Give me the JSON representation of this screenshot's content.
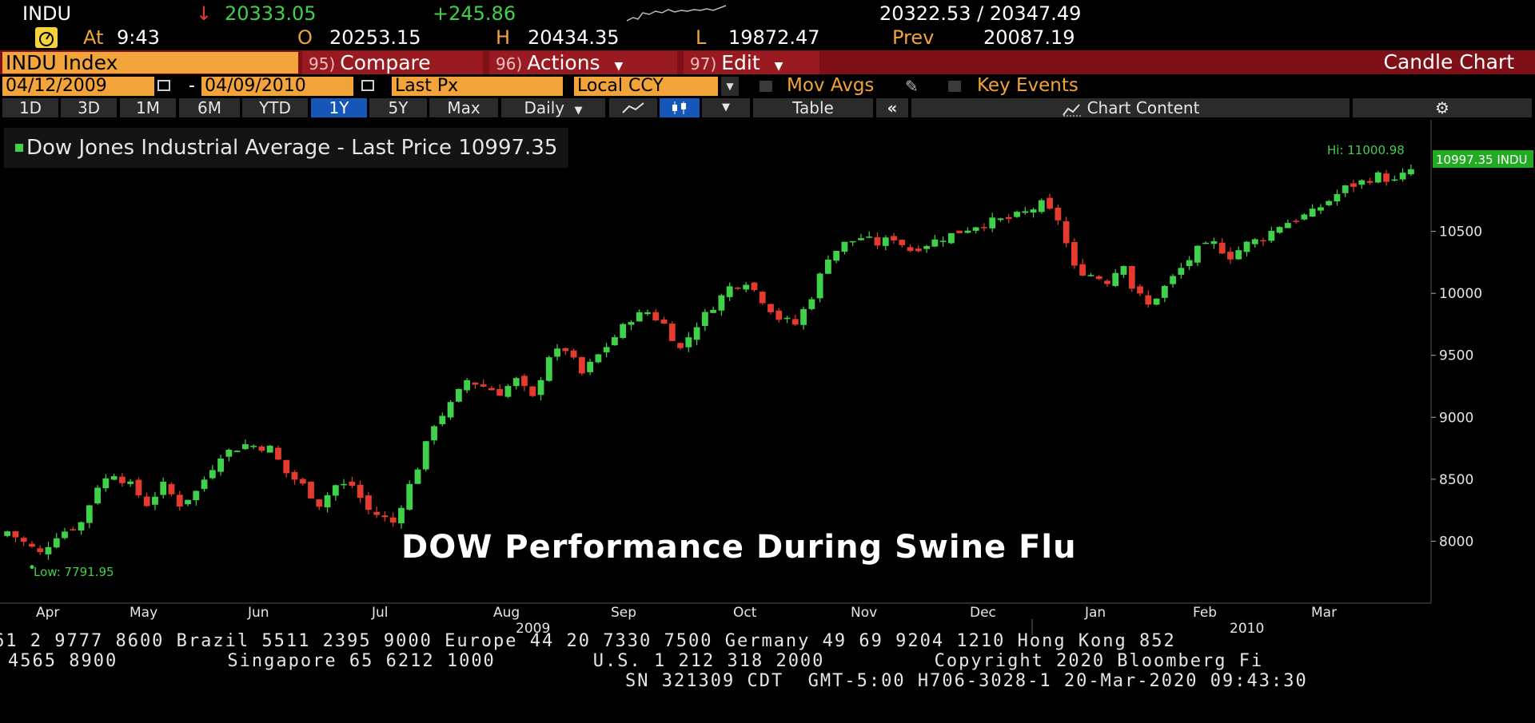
{
  "quote": {
    "ticker": "INDU",
    "arrow": "↓",
    "last": "20333.05",
    "change": "+245.86",
    "bid_ask": "20322.53 / 20347.49",
    "at_label": "At",
    "time": "9:43",
    "open_label": "O",
    "open": "20253.15",
    "high_label": "H",
    "high": "20434.35",
    "low_label": "L",
    "low": "19872.47",
    "prev_label": "Prev",
    "prev": "20087.19"
  },
  "function_bar": {
    "ticker": "INDU Index",
    "compare_num": "95)",
    "compare": "Compare",
    "actions_num": "96)",
    "actions": "Actions",
    "edit_num": "97)",
    "edit": "Edit",
    "title": "Candle Chart"
  },
  "controls": {
    "start_date": "04/12/2009",
    "dash": "-",
    "end_date": "04/09/2010",
    "field": "Last Px",
    "currency": "Local CCY",
    "mov_avgs": "Mov Avgs",
    "key_events": "Key Events"
  },
  "tabs": {
    "periods": [
      "1D",
      "3D",
      "1M",
      "6M",
      "YTD",
      "1Y",
      "5Y",
      "Max"
    ],
    "active": "1Y",
    "frequency": "Daily",
    "table": "Table",
    "chart_content": "Chart Content"
  },
  "legend": {
    "text": "Dow Jones Industrial Average - Last Price 10997.35"
  },
  "overlay_title": "DOW Performance During Swine Flu",
  "chart_data": {
    "type": "candlestick",
    "hi_label": "Hi: 11000.98",
    "low_label": "Low: 7791.95",
    "last_label": "10997.35 INDU",
    "y_ticks": [
      8000,
      8500,
      9000,
      9500,
      10000,
      10500
    ],
    "y_tick_labels": [
      "8000",
      "8500",
      "9000",
      "9500",
      "10000",
      "10500"
    ],
    "ylim": [
      7500,
      11400
    ],
    "x_months": [
      "Apr",
      "May",
      "Jun",
      "Jul",
      "Aug",
      "Sep",
      "Oct",
      "Nov",
      "Dec",
      "Jan",
      "Feb",
      "Mar"
    ],
    "x_years": [
      "2009",
      "2010"
    ],
    "up_color": "#3fd14a",
    "down_color": "#e53a2e",
    "close_path": [
      [
        0,
        8080
      ],
      [
        4,
        7900
      ],
      [
        6,
        8050
      ],
      [
        9,
        8150
      ],
      [
        11,
        8450
      ],
      [
        13,
        8550
      ],
      [
        15,
        8450
      ],
      [
        17,
        8300
      ],
      [
        19,
        8450
      ],
      [
        21,
        8300
      ],
      [
        23,
        8400
      ],
      [
        26,
        8700
      ],
      [
        29,
        8780
      ],
      [
        32,
        8750
      ],
      [
        34,
        8550
      ],
      [
        36,
        8450
      ],
      [
        38,
        8300
      ],
      [
        40,
        8450
      ],
      [
        42,
        8450
      ],
      [
        44,
        8250
      ],
      [
        47,
        8150
      ],
      [
        50,
        8600
      ],
      [
        52,
        8950
      ],
      [
        54,
        9100
      ],
      [
        56,
        9300
      ],
      [
        58,
        9250
      ],
      [
        60,
        9200
      ],
      [
        62,
        9300
      ],
      [
        64,
        9150
      ],
      [
        66,
        9500
      ],
      [
        68,
        9550
      ],
      [
        70,
        9350
      ],
      [
        72,
        9500
      ],
      [
        74,
        9650
      ],
      [
        76,
        9800
      ],
      [
        78,
        9850
      ],
      [
        80,
        9750
      ],
      [
        82,
        9550
      ],
      [
        84,
        9750
      ],
      [
        86,
        9900
      ],
      [
        88,
        10050
      ],
      [
        90,
        10100
      ],
      [
        92,
        9950
      ],
      [
        94,
        9800
      ],
      [
        96,
        9750
      ],
      [
        98,
        9980
      ],
      [
        100,
        10300
      ],
      [
        102,
        10400
      ],
      [
        104,
        10450
      ],
      [
        106,
        10400
      ],
      [
        108,
        10450
      ],
      [
        110,
        10350
      ],
      [
        112,
        10400
      ],
      [
        114,
        10450
      ],
      [
        116,
        10500
      ],
      [
        118,
        10550
      ],
      [
        120,
        10580
      ],
      [
        122,
        10600
      ],
      [
        124,
        10650
      ],
      [
        126,
        10720
      ],
      [
        128,
        10600
      ],
      [
        130,
        10200
      ],
      [
        132,
        10150
      ],
      [
        134,
        10100
      ],
      [
        136,
        10250
      ],
      [
        137,
        10050
      ],
      [
        139,
        9900
      ],
      [
        141,
        10050
      ],
      [
        143,
        10200
      ],
      [
        145,
        10350
      ],
      [
        147,
        10400
      ],
      [
        149,
        10300
      ],
      [
        151,
        10400
      ],
      [
        153,
        10450
      ],
      [
        155,
        10550
      ],
      [
        157,
        10600
      ],
      [
        159,
        10650
      ],
      [
        161,
        10750
      ],
      [
        163,
        10850
      ],
      [
        165,
        10900
      ],
      [
        167,
        10950
      ],
      [
        169,
        10900
      ],
      [
        171,
        10997
      ]
    ]
  }
}
